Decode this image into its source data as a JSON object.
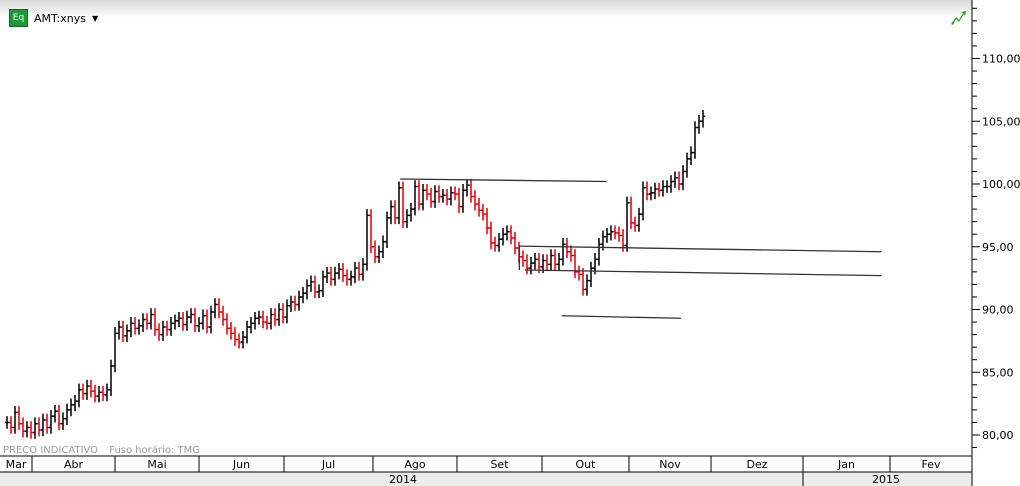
{
  "header": {
    "symbol": "AMT:xnys",
    "badge": "Eq"
  },
  "footer": {
    "notice": "PREÇO INDICATIVO",
    "timezone": "Fuso horário: TMG"
  },
  "colors": {
    "up": "#000000",
    "down": "#e00000",
    "trendline": "#333333",
    "badge": "#1e9a3a"
  },
  "chart_data": {
    "type": "ohlc",
    "y_axis": {
      "ticks": [
        "80,00",
        "85,00",
        "90,00",
        "95,00",
        "100,00",
        "105,00",
        "110,00"
      ],
      "tick_values": [
        80,
        85,
        90,
        95,
        100,
        105,
        110
      ],
      "range": [
        79,
        114
      ],
      "position": "right"
    },
    "x_axis": {
      "months": [
        "Mar",
        "Abr",
        "Mai",
        "Jun",
        "Jul",
        "Ago",
        "Set",
        "Out",
        "Nov",
        "Dez",
        "Jan",
        "Fev"
      ],
      "years": [
        "2014",
        "2015"
      ]
    },
    "closes": [
      81.0,
      80.6,
      81.8,
      80.9,
      80.3,
      80.6,
      80.2,
      80.9,
      80.4,
      81.2,
      80.6,
      81.5,
      81.9,
      80.9,
      81.3,
      82.0,
      82.4,
      82.7,
      83.6,
      83.3,
      83.9,
      83.5,
      83.1,
      83.4,
      83.2,
      83.6,
      85.5,
      88.1,
      88.6,
      87.9,
      88.3,
      88.9,
      88.5,
      88.7,
      89.2,
      88.9,
      89.6,
      88.4,
      88.0,
      88.6,
      88.4,
      88.9,
      89.1,
      89.3,
      88.8,
      89.4,
      89.6,
      88.7,
      88.9,
      89.5,
      88.6,
      89.8,
      90.4,
      89.8,
      89.2,
      88.5,
      88.1,
      87.6,
      87.4,
      87.8,
      88.6,
      88.9,
      89.3,
      89.4,
      89.0,
      88.9,
      89.6,
      89.2,
      90.0,
      89.4,
      90.3,
      90.6,
      90.4,
      91.0,
      91.3,
      91.9,
      92.2,
      91.4,
      91.5,
      92.6,
      92.9,
      92.4,
      92.9,
      93.2,
      92.7,
      92.4,
      92.6,
      93.3,
      92.8,
      93.6,
      97.5,
      95.0,
      94.2,
      94.6,
      95.4,
      97.3,
      98.2,
      97.3,
      99.7,
      97.0,
      97.5,
      98.0,
      99.8,
      98.4,
      99.5,
      99.2,
      98.6,
      99.4,
      99.0,
      99.1,
      98.8,
      99.3,
      99.2,
      98.2,
      99.5,
      99.9,
      99.0,
      98.4,
      97.9,
      97.6,
      96.5,
      95.3,
      95.1,
      95.6,
      96.0,
      96.2,
      95.7,
      94.9,
      94.2,
      93.9,
      93.3,
      93.7,
      94.0,
      93.4,
      93.9,
      93.6,
      94.3,
      93.6,
      94.0,
      95.2,
      94.6,
      94.3,
      93.0,
      92.8,
      91.6,
      92.3,
      93.3,
      94.0,
      95.2,
      95.8,
      96.0,
      96.2,
      96.1,
      95.9,
      95.1,
      98.5,
      96.9,
      96.7,
      97.6,
      99.7,
      99.2,
      99.3,
      99.6,
      99.5,
      99.8,
      99.8,
      100.2,
      100.5,
      100.0,
      101.0,
      102.0,
      102.5,
      104.5,
      105.0,
      105.4
    ],
    "trendlines": [
      {
        "from": {
          "date": "2014-08-11",
          "price": 100.4
        },
        "to": {
          "date": "2014-10-24",
          "price": 100.2
        }
      },
      {
        "from": {
          "date": "2014-09-23",
          "price": 95.05
        },
        "to": {
          "date": "2015-01-29",
          "price": 94.6
        }
      },
      {
        "from": {
          "date": "2014-09-25",
          "price": 93.15
        },
        "to": {
          "date": "2015-01-29",
          "price": 92.7
        }
      },
      {
        "from": {
          "date": "2014-10-08",
          "price": 89.5
        },
        "to": {
          "date": "2014-11-20",
          "price": 89.3
        }
      }
    ]
  }
}
